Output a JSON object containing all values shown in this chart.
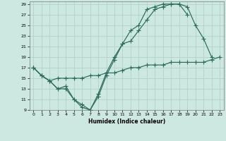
{
  "xlabel": "Humidex (Indice chaleur)",
  "bg_color": "#cde8e0",
  "grid_color": "#aacfc5",
  "line_color": "#2a6b5a",
  "xlim": [
    -0.5,
    23.5
  ],
  "ylim": [
    9,
    29.5
  ],
  "xticks": [
    0,
    1,
    2,
    3,
    4,
    5,
    6,
    7,
    8,
    9,
    10,
    11,
    12,
    13,
    14,
    15,
    16,
    17,
    18,
    19,
    20,
    21,
    22,
    23
  ],
  "yticks": [
    9,
    11,
    13,
    15,
    17,
    19,
    21,
    23,
    25,
    27,
    29
  ],
  "curve1_x": [
    0,
    1,
    2,
    3,
    4,
    5,
    6,
    7,
    8,
    9,
    10,
    11,
    12,
    13,
    14,
    15,
    16,
    17,
    18,
    19,
    20,
    21,
    22
  ],
  "curve1_y": [
    17,
    15.5,
    14.5,
    13,
    13.5,
    11,
    10,
    9,
    12,
    16,
    19,
    21.5,
    24,
    25,
    28,
    28.5,
    29,
    29,
    29,
    28.5,
    25,
    22.5,
    19
  ],
  "curve2_x": [
    0,
    1,
    2,
    3,
    4,
    5,
    6,
    7,
    8,
    9,
    10,
    11,
    12,
    13,
    14,
    15,
    16,
    17,
    18,
    19
  ],
  "curve2_y": [
    17,
    15.5,
    14.5,
    13,
    13,
    11,
    9.5,
    9,
    11.5,
    15.5,
    18.5,
    21.5,
    22,
    24,
    26,
    28,
    28.5,
    29,
    29,
    27
  ],
  "curve3_x": [
    0,
    1,
    2,
    3,
    4,
    5,
    6,
    7,
    8,
    9,
    10,
    11,
    12,
    13,
    14,
    15,
    16,
    17,
    18,
    19,
    20,
    21,
    22,
    23
  ],
  "curve3_y": [
    17,
    15.5,
    14.5,
    15,
    15,
    15,
    15,
    15.5,
    15.5,
    16,
    16,
    16.5,
    17,
    17,
    17.5,
    17.5,
    17.5,
    18,
    18,
    18,
    18,
    18,
    18.5,
    19
  ]
}
